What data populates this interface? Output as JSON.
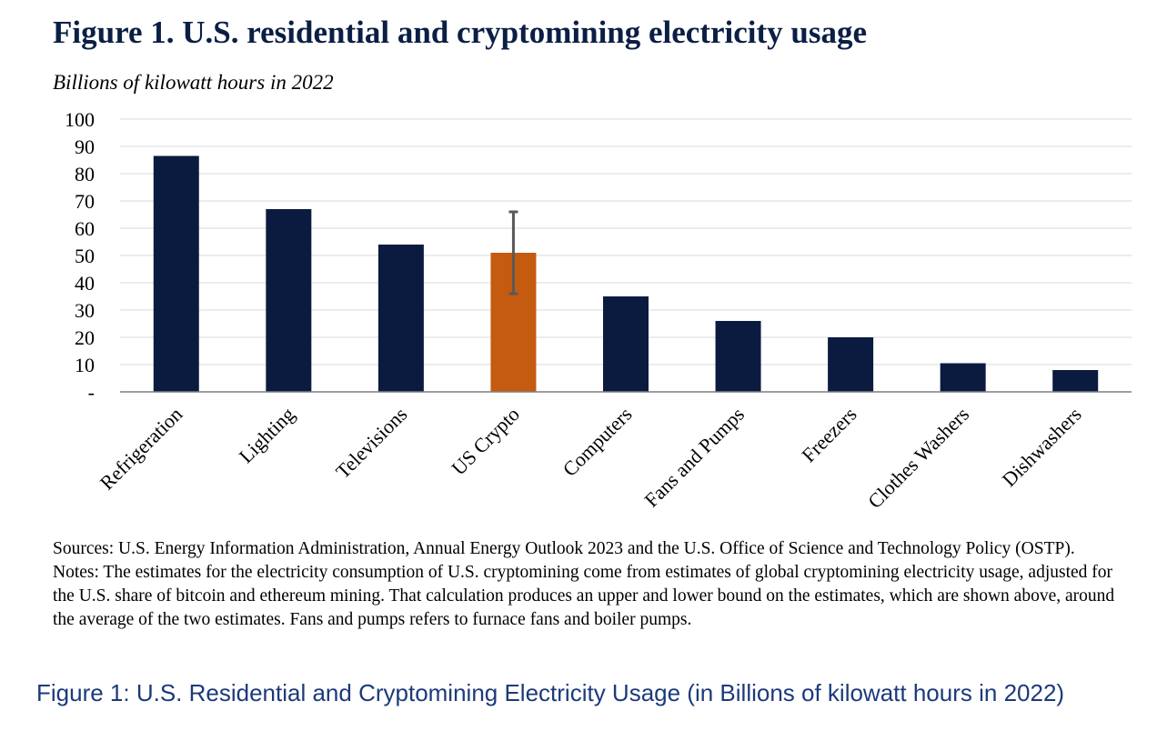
{
  "header": {
    "title": "Figure 1. U.S. residential and cryptomining electricity usage",
    "subtitle": "Billions of kilowatt hours in 2022"
  },
  "chart_data": {
    "type": "bar",
    "title": "Figure 1. U.S. residential and cryptomining electricity usage",
    "ylabel": "Billions of kilowatt hours in 2022",
    "xlabel": "",
    "categories": [
      "Refrigeration",
      "Lighting",
      "Televisions",
      "US Crypto",
      "Computers",
      "Fans and Pumps",
      "Freezers",
      "Clothes Washers",
      "Dishwashers"
    ],
    "values": [
      86.5,
      67,
      54,
      51,
      35,
      26,
      20,
      10.5,
      8
    ],
    "error_bar": {
      "category": "US Crypto",
      "lower": 36,
      "upper": 66
    },
    "ylim": [
      0,
      100
    ],
    "yticks": [
      0,
      10,
      20,
      30,
      40,
      50,
      60,
      70,
      80,
      90,
      100
    ],
    "ytick_labels": [
      "-",
      "10",
      "20",
      "30",
      "40",
      "50",
      "60",
      "70",
      "80",
      "90",
      "100"
    ],
    "grid": true,
    "colors": {
      "default": "#0b1b40",
      "highlight": "#c55a11",
      "error_bar": "#595959",
      "grid": "#d9d9d9",
      "axis": "#7f7f7f"
    },
    "highlight_category": "US Crypto"
  },
  "notes": {
    "sources": "Sources: U.S. Energy Information Administration, Annual Energy Outlook 2023 and the U.S. Office of Science and Technology Policy (OSTP).",
    "notes": "Notes: The estimates for the electricity consumption of U.S. cryptomining come from estimates of global cryptomining electricity usage, adjusted for the U.S. share of bitcoin and ethereum mining. That calculation produces an upper and lower bound on the estimates, which are shown above, around the average of the two estimates. Fans and pumps refers to furnace fans and boiler pumps."
  },
  "caption": "Figure 1: U.S. Residential and Cryptomining Electricity Usage (in Billions of kilowatt hours in 2022)"
}
